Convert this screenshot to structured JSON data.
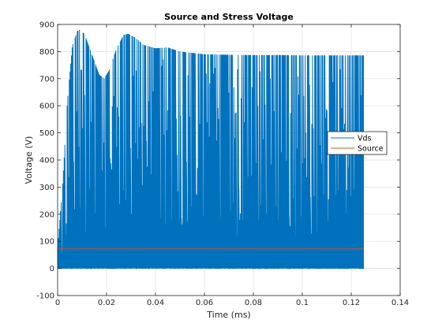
{
  "chart_data": {
    "type": "line",
    "title": "Source and Stress Voltage",
    "xlabel": "Time (ms)",
    "ylabel": "Voltage (V)",
    "xlim": [
      0,
      0.14
    ],
    "ylim": [
      -100,
      900
    ],
    "xticks": [
      0,
      0.02,
      0.04,
      0.06,
      0.08,
      0.1,
      0.12,
      0.14
    ],
    "yticks": [
      -100,
      0,
      100,
      200,
      300,
      400,
      500,
      600,
      700,
      800,
      900
    ],
    "xtick_labels": [
      "0",
      "0.02",
      "0.04",
      "0.06",
      "0.08",
      "0.1",
      "0.12",
      "0.14"
    ],
    "ytick_labels": [
      "-100",
      "0",
      "100",
      "200",
      "300",
      "400",
      "500",
      "600",
      "700",
      "800",
      "900"
    ],
    "grid": true,
    "legend_position": "right",
    "series": [
      {
        "name": "Vds",
        "color": "#0072BD",
        "style": "switching",
        "x_range": [
          0,
          0.125
        ],
        "low_value": 0,
        "peak_envelope": {
          "x": [
            0,
            0.002,
            0.004,
            0.006,
            0.008,
            0.009,
            0.011,
            0.014,
            0.017,
            0.019,
            0.021,
            0.024,
            0.027,
            0.029,
            0.032,
            0.035,
            0.04,
            0.045,
            0.05,
            0.06,
            0.07,
            0.08,
            0.09,
            0.1,
            0.11,
            0.125
          ],
          "y": [
            80,
            300,
            620,
            820,
            875,
            880,
            865,
            790,
            715,
            700,
            730,
            810,
            862,
            865,
            850,
            825,
            812,
            815,
            800,
            790,
            788,
            787,
            787,
            786,
            786,
            786
          ]
        }
      },
      {
        "name": "Source",
        "color": "#D95319",
        "style": "line",
        "x": [
          0,
          0.125
        ],
        "y": [
          72,
          72
        ]
      }
    ]
  }
}
